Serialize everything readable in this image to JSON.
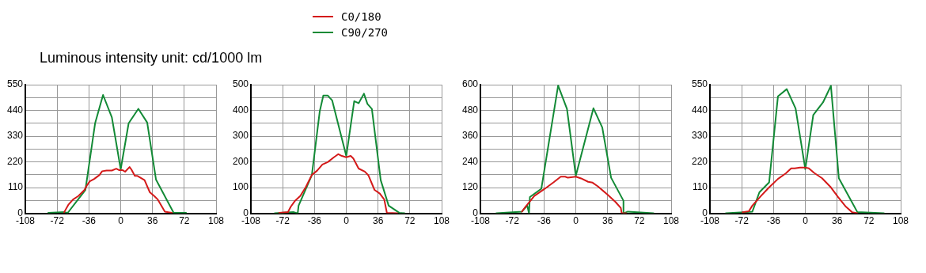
{
  "chart_data": [
    {
      "type": "line",
      "title": "Luminous intensity unit: cd/1000 lm",
      "legend": "top",
      "grid": true,
      "marker": "none",
      "line_style": "solid",
      "xlim": [
        -108,
        108
      ],
      "xticks": [
        -108,
        -72,
        -36,
        0,
        36,
        72,
        108
      ],
      "ylim": [
        0,
        550
      ],
      "yticks": [
        0,
        {
          "value": 55,
          "label": null
        },
        110,
        {
          "value": 165,
          "label": null
        },
        220,
        {
          "value": 275,
          "label": null
        },
        330,
        {
          "value": 385,
          "label": null
        },
        440,
        {
          "value": 495,
          "label": null
        },
        550
      ],
      "series": [
        {
          "name": "C0/180",
          "color": "#d41a1a",
          "x": [
            -64,
            -59,
            -54,
            -48,
            -41,
            -38,
            -35,
            -30,
            -24,
            -21,
            -16,
            -10,
            -5,
            -2,
            2,
            5,
            10,
            12,
            16,
            19,
            27,
            33,
            38,
            42,
            50,
            58
          ],
          "values": [
            5,
            38,
            59,
            74,
            100,
            121,
            137,
            147,
            164,
            180,
            183,
            183,
            191,
            185,
            185,
            178,
            198,
            188,
            160,
            160,
            142,
            90,
            74,
            59,
            7,
            2
          ]
        },
        {
          "name": "C90/270",
          "color": "#138a36",
          "x": [
            -82,
            -64,
            -60,
            -40,
            -29,
            -20,
            -10,
            0,
            9,
            20,
            30,
            40,
            60,
            74
          ],
          "values": [
            2,
            5,
            2,
            100,
            385,
            506,
            410,
            188,
            385,
            447,
            388,
            144,
            2,
            2
          ]
        }
      ]
    },
    {
      "type": "line",
      "grid": true,
      "marker": "none",
      "line_style": "solid",
      "xlim": [
        -108,
        108
      ],
      "xticks": [
        -108,
        -72,
        -36,
        0,
        36,
        72,
        108
      ],
      "ylim": [
        0,
        500
      ],
      "yticks": [
        0,
        {
          "value": 50,
          "label": null
        },
        100,
        {
          "value": 150,
          "label": null
        },
        200,
        {
          "value": 250,
          "label": null
        },
        300,
        {
          "value": 350,
          "label": null
        },
        400,
        {
          "value": 450,
          "label": null
        },
        500
      ],
      "series": [
        {
          "color": "#d41a1a",
          "x": [
            -76,
            -66,
            -63,
            -58,
            -52,
            -46,
            -39,
            -33,
            -27,
            -21,
            -14,
            -9,
            -5,
            0,
            5,
            8,
            14,
            21,
            25,
            32,
            38,
            43,
            46,
            58
          ],
          "values": [
            2,
            5,
            25,
            49,
            68,
            101,
            149,
            166,
            190,
            199,
            218,
            230,
            223,
            218,
            223,
            213,
            174,
            162,
            148,
            91,
            77,
            54,
            2,
            0
          ]
        },
        {
          "color": "#138a36",
          "x": [
            -81,
            -60,
            -55,
            -54,
            -39,
            -30,
            -26,
            -21,
            -16,
            0,
            9,
            14,
            20,
            24,
            29,
            39,
            48,
            60,
            66
          ],
          "values": [
            0,
            5,
            0,
            30,
            148,
            397,
            458,
            458,
            439,
            223,
            436,
            428,
            465,
            425,
            406,
            129,
            30,
            2,
            0
          ]
        }
      ]
    },
    {
      "type": "line",
      "grid": true,
      "marker": "none",
      "line_style": "solid",
      "xlim": [
        -108,
        108
      ],
      "xticks": [
        -108,
        -72,
        -36,
        0,
        36,
        72,
        108
      ],
      "ylim": [
        0,
        600
      ],
      "yticks": [
        0,
        {
          "value": 60,
          "label": null
        },
        120,
        {
          "value": 180,
          "label": null
        },
        240,
        {
          "value": 300,
          "label": null
        },
        360,
        {
          "value": 420,
          "label": null
        },
        480,
        {
          "value": 540,
          "label": null
        },
        600
      ],
      "series": [
        {
          "color": "#d41a1a",
          "x": [
            -61,
            -57,
            -47,
            -35,
            -25,
            -17,
            -12,
            -9,
            0,
            6,
            14,
            19,
            25,
            36,
            45,
            51,
            52,
            57
          ],
          "values": [
            8,
            30,
            81,
            115,
            145,
            171,
            171,
            166,
            171,
            163,
            147,
            143,
            126,
            87,
            53,
            25,
            0,
            0
          ]
        },
        {
          "color": "#138a36",
          "x": [
            -90,
            -61,
            -55,
            -53,
            -52,
            -39,
            -20,
            -10,
            0,
            20,
            30,
            40,
            54,
            54,
            59,
            88
          ],
          "values": [
            0,
            8,
            36,
            0,
            76,
            115,
            596,
            487,
            175,
            490,
            400,
            166,
            59,
            0,
            8,
            0
          ]
        }
      ]
    },
    {
      "type": "line",
      "grid": true,
      "marker": "none",
      "line_style": "solid",
      "xlim": [
        -108,
        108
      ],
      "xticks": [
        -108,
        -72,
        -36,
        0,
        36,
        72,
        108
      ],
      "ylim": [
        0,
        550
      ],
      "yticks": [
        0,
        {
          "value": 55,
          "label": null
        },
        110,
        {
          "value": 165,
          "label": null
        },
        220,
        {
          "value": 275,
          "label": null
        },
        330,
        {
          "value": 385,
          "label": null
        },
        440,
        {
          "value": 495,
          "label": null
        },
        550
      ],
      "series": [
        {
          "color": "#d41a1a",
          "x": [
            -71,
            -64,
            -60,
            -50,
            -41,
            -31,
            -22,
            -16,
            -12,
            -6,
            0,
            4,
            10,
            19,
            29,
            37,
            46,
            53,
            59
          ],
          "values": [
            5,
            9,
            33,
            75,
            111,
            147,
            171,
            192,
            192,
            196,
            196,
            192,
            173,
            150,
            111,
            70,
            28,
            5,
            0
          ]
        },
        {
          "color": "#138a36",
          "x": [
            -90,
            -66,
            -60,
            -52,
            -41,
            -31,
            -21,
            -11,
            0,
            9,
            20,
            29,
            38,
            59,
            89
          ],
          "values": [
            0,
            5,
            7,
            90,
            132,
            500,
            531,
            448,
            189,
            420,
            474,
            545,
            150,
            5,
            0
          ]
        }
      ]
    }
  ]
}
